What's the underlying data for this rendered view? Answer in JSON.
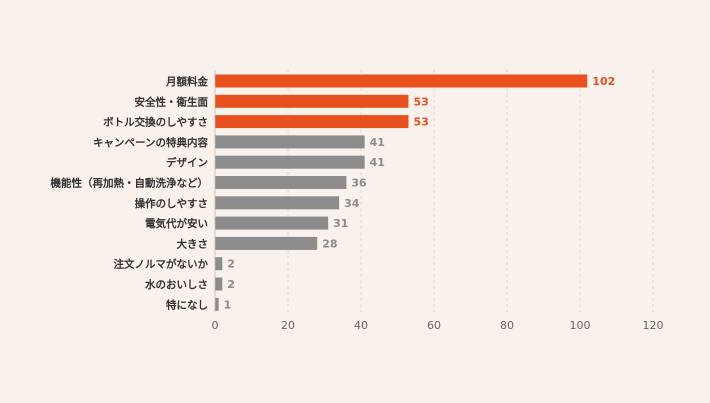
{
  "chart_data": {
    "type": "bar",
    "orientation": "horizontal",
    "categories": [
      "月額料金",
      "安全性・衛生面",
      "ボトル交換のしやすさ",
      "キャンペーンの特典内容",
      "デザイン",
      "機能性（再加熱・自動洗浄など）",
      "操作のしやすさ",
      "電気代が安い",
      "大きさ",
      "注文ノルマがないか",
      "水のおいしさ",
      "特になし"
    ],
    "values": [
      102,
      53,
      53,
      41,
      41,
      36,
      34,
      31,
      28,
      2,
      2,
      1
    ],
    "highlighted": [
      true,
      true,
      true,
      false,
      false,
      false,
      false,
      false,
      false,
      false,
      false,
      false
    ],
    "xlim": [
      0,
      120
    ],
    "xticks": [
      0,
      20,
      40,
      60,
      80,
      100,
      120
    ],
    "grid": "vertical dashed",
    "colors": {
      "highlight": "#e8501e",
      "normal": "#8c8c8c",
      "highlight_label": "#e8501e",
      "normal_label": "#8c8c8c",
      "background": "#f8f1ec"
    }
  }
}
